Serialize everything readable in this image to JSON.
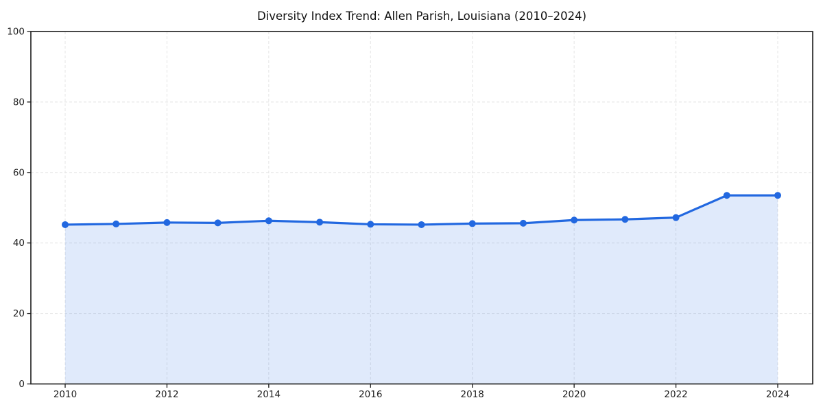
{
  "chart_data": {
    "type": "area",
    "title": "Diversity Index Trend: Allen Parish, Louisiana (2010–2024)",
    "xlabel": "",
    "ylabel": "",
    "x": [
      2010,
      2011,
      2012,
      2013,
      2014,
      2015,
      2016,
      2017,
      2018,
      2019,
      2020,
      2021,
      2022,
      2023,
      2024
    ],
    "series": [
      {
        "name": "Diversity Index",
        "values": [
          45.2,
          45.4,
          45.8,
          45.7,
          46.3,
          45.9,
          45.3,
          45.2,
          45.5,
          45.6,
          46.5,
          46.7,
          47.2,
          53.5,
          53.5
        ]
      }
    ],
    "xlim": [
      2009.3,
      2024.7
    ],
    "ylim": [
      0,
      100
    ],
    "xticks": [
      2010,
      2012,
      2014,
      2016,
      2018,
      2020,
      2022,
      2024
    ],
    "yticks": [
      0,
      20,
      40,
      60,
      80,
      100
    ],
    "grid": true,
    "grid_style": "dashed",
    "legend": "none",
    "marker": "circle",
    "colors": {
      "line": "#2268e0",
      "marker": "#2268e0",
      "fill": "rgba(34,104,224,0.14)",
      "grid": "#e4e4e4",
      "axis": "#1a1a1a",
      "text": "#1f1f1f",
      "background": "#ffffff"
    }
  }
}
